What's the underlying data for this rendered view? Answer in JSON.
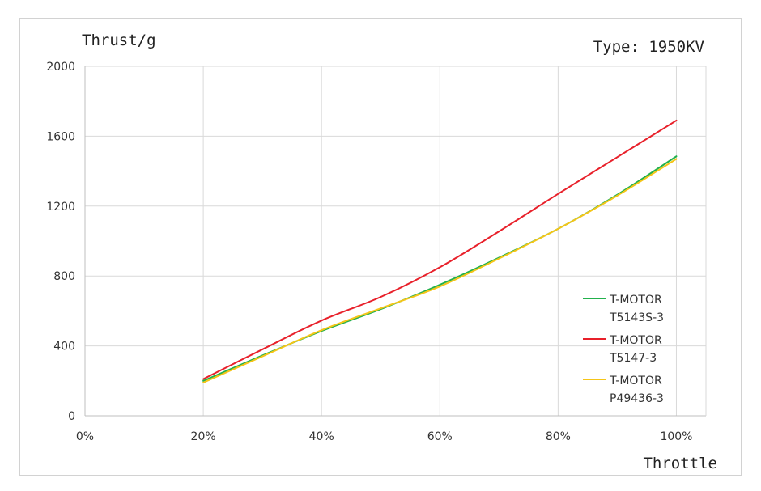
{
  "chart_data": {
    "type": "line",
    "ylabel": "Thrust/g",
    "xlabel": "Throttle",
    "annotation": "Type: 1950KV",
    "x": [
      20,
      30,
      40,
      50,
      60,
      70,
      80,
      90,
      100
    ],
    "x_tick_labels": [
      "0%",
      "20%",
      "40%",
      "60%",
      "80%",
      "100%"
    ],
    "y_tick_labels": [
      "0",
      "400",
      "800",
      "1200",
      "1600",
      "2000"
    ],
    "xlim": [
      0,
      105
    ],
    "ylim": [
      0,
      2000
    ],
    "y_ticks": [
      0,
      400,
      800,
      1200,
      1600,
      2000
    ],
    "x_ticks": [
      0,
      20,
      40,
      60,
      80,
      100
    ],
    "grid": true,
    "legend_position": "right",
    "series": [
      {
        "label_line1": "T-MOTOR",
        "label_line2": "T5143S-3",
        "color": "#22b14c",
        "values": [
          200,
          345,
          485,
          610,
          750,
          905,
          1070,
          1265,
          1485
        ]
      },
      {
        "label_line1": "T-MOTOR",
        "label_line2": "T5147-3",
        "color": "#e8202a",
        "values": [
          210,
          380,
          545,
          680,
          850,
          1055,
          1270,
          1480,
          1690
        ]
      },
      {
        "label_line1": "T-MOTOR",
        "label_line2": "P49436-3",
        "color": "#f5c518",
        "values": [
          190,
          340,
          490,
          615,
          740,
          900,
          1070,
          1260,
          1470
        ]
      }
    ]
  }
}
